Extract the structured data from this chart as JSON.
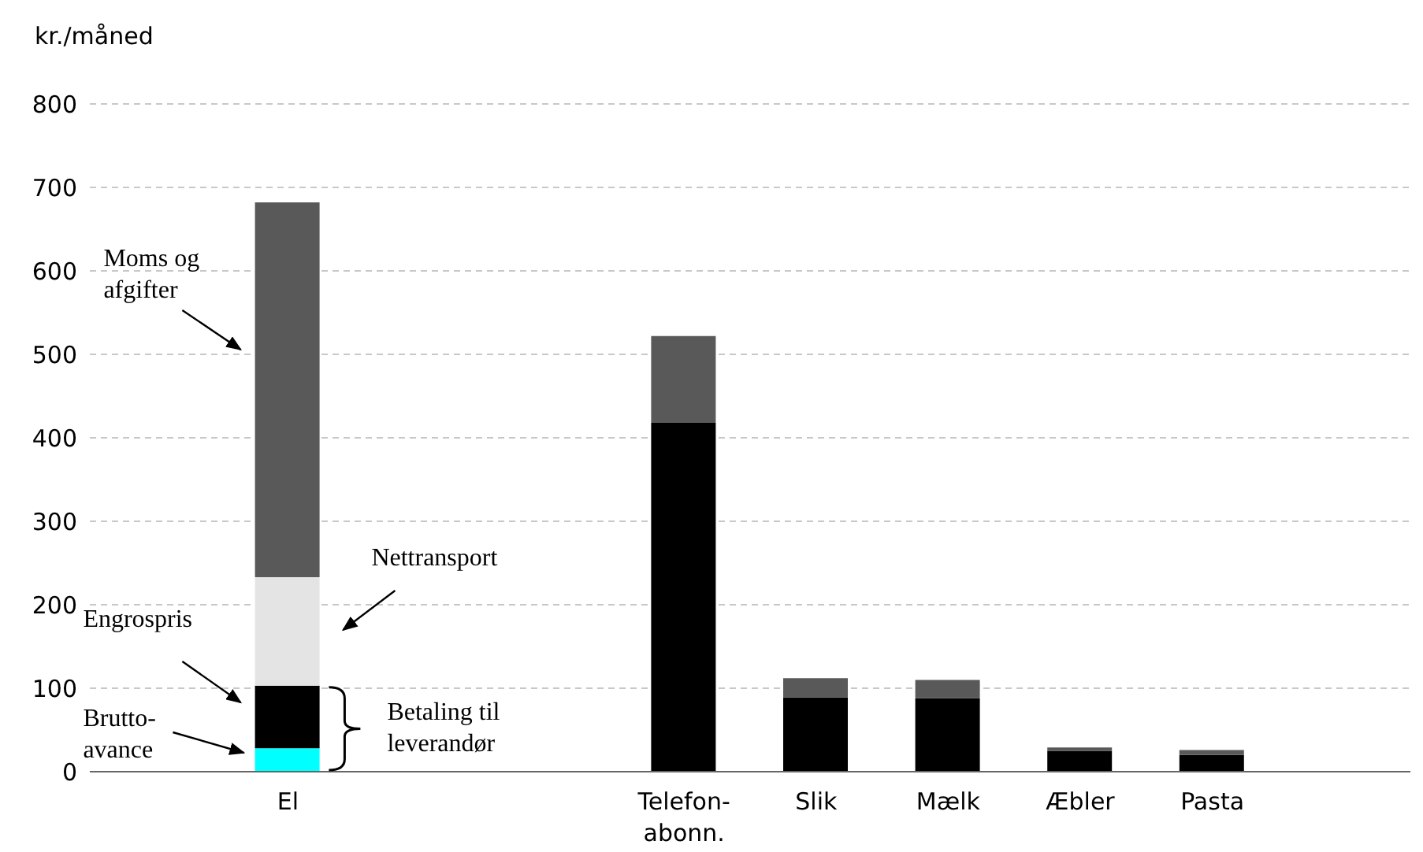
{
  "chart_data": {
    "type": "bar",
    "stacked": true,
    "ylabel": "kr./måned",
    "categories": [
      null,
      "El",
      null,
      null,
      "Telefon-abonn.",
      "Slik",
      "Mælk",
      "Æbler",
      "Pasta",
      null
    ],
    "series": [
      {
        "color": "#00ffff",
        "values": [
          null,
          28,
          null,
          null,
          null,
          null,
          null,
          null,
          null,
          null
        ]
      },
      {
        "color": "#000000",
        "values": [
          null,
          75,
          null,
          null,
          418,
          89,
          88,
          25,
          20,
          null
        ]
      },
      {
        "color": "#e4e4e4",
        "values": [
          null,
          130,
          null,
          null,
          null,
          null,
          null,
          null,
          null,
          null
        ]
      },
      {
        "color": "#595959",
        "values": [
          null,
          449,
          null,
          null,
          104,
          23,
          22,
          4,
          6,
          null
        ]
      }
    ],
    "ylim": [
      0,
      800
    ],
    "yticks": [
      0,
      100,
      200,
      300,
      400,
      500,
      600,
      700,
      800
    ],
    "grid": "y",
    "legend": false,
    "annotations": [
      "Moms og afgifter",
      "Nettransport",
      "Engrospris",
      "Brutto-avance",
      "Betaling til leverandør"
    ]
  }
}
